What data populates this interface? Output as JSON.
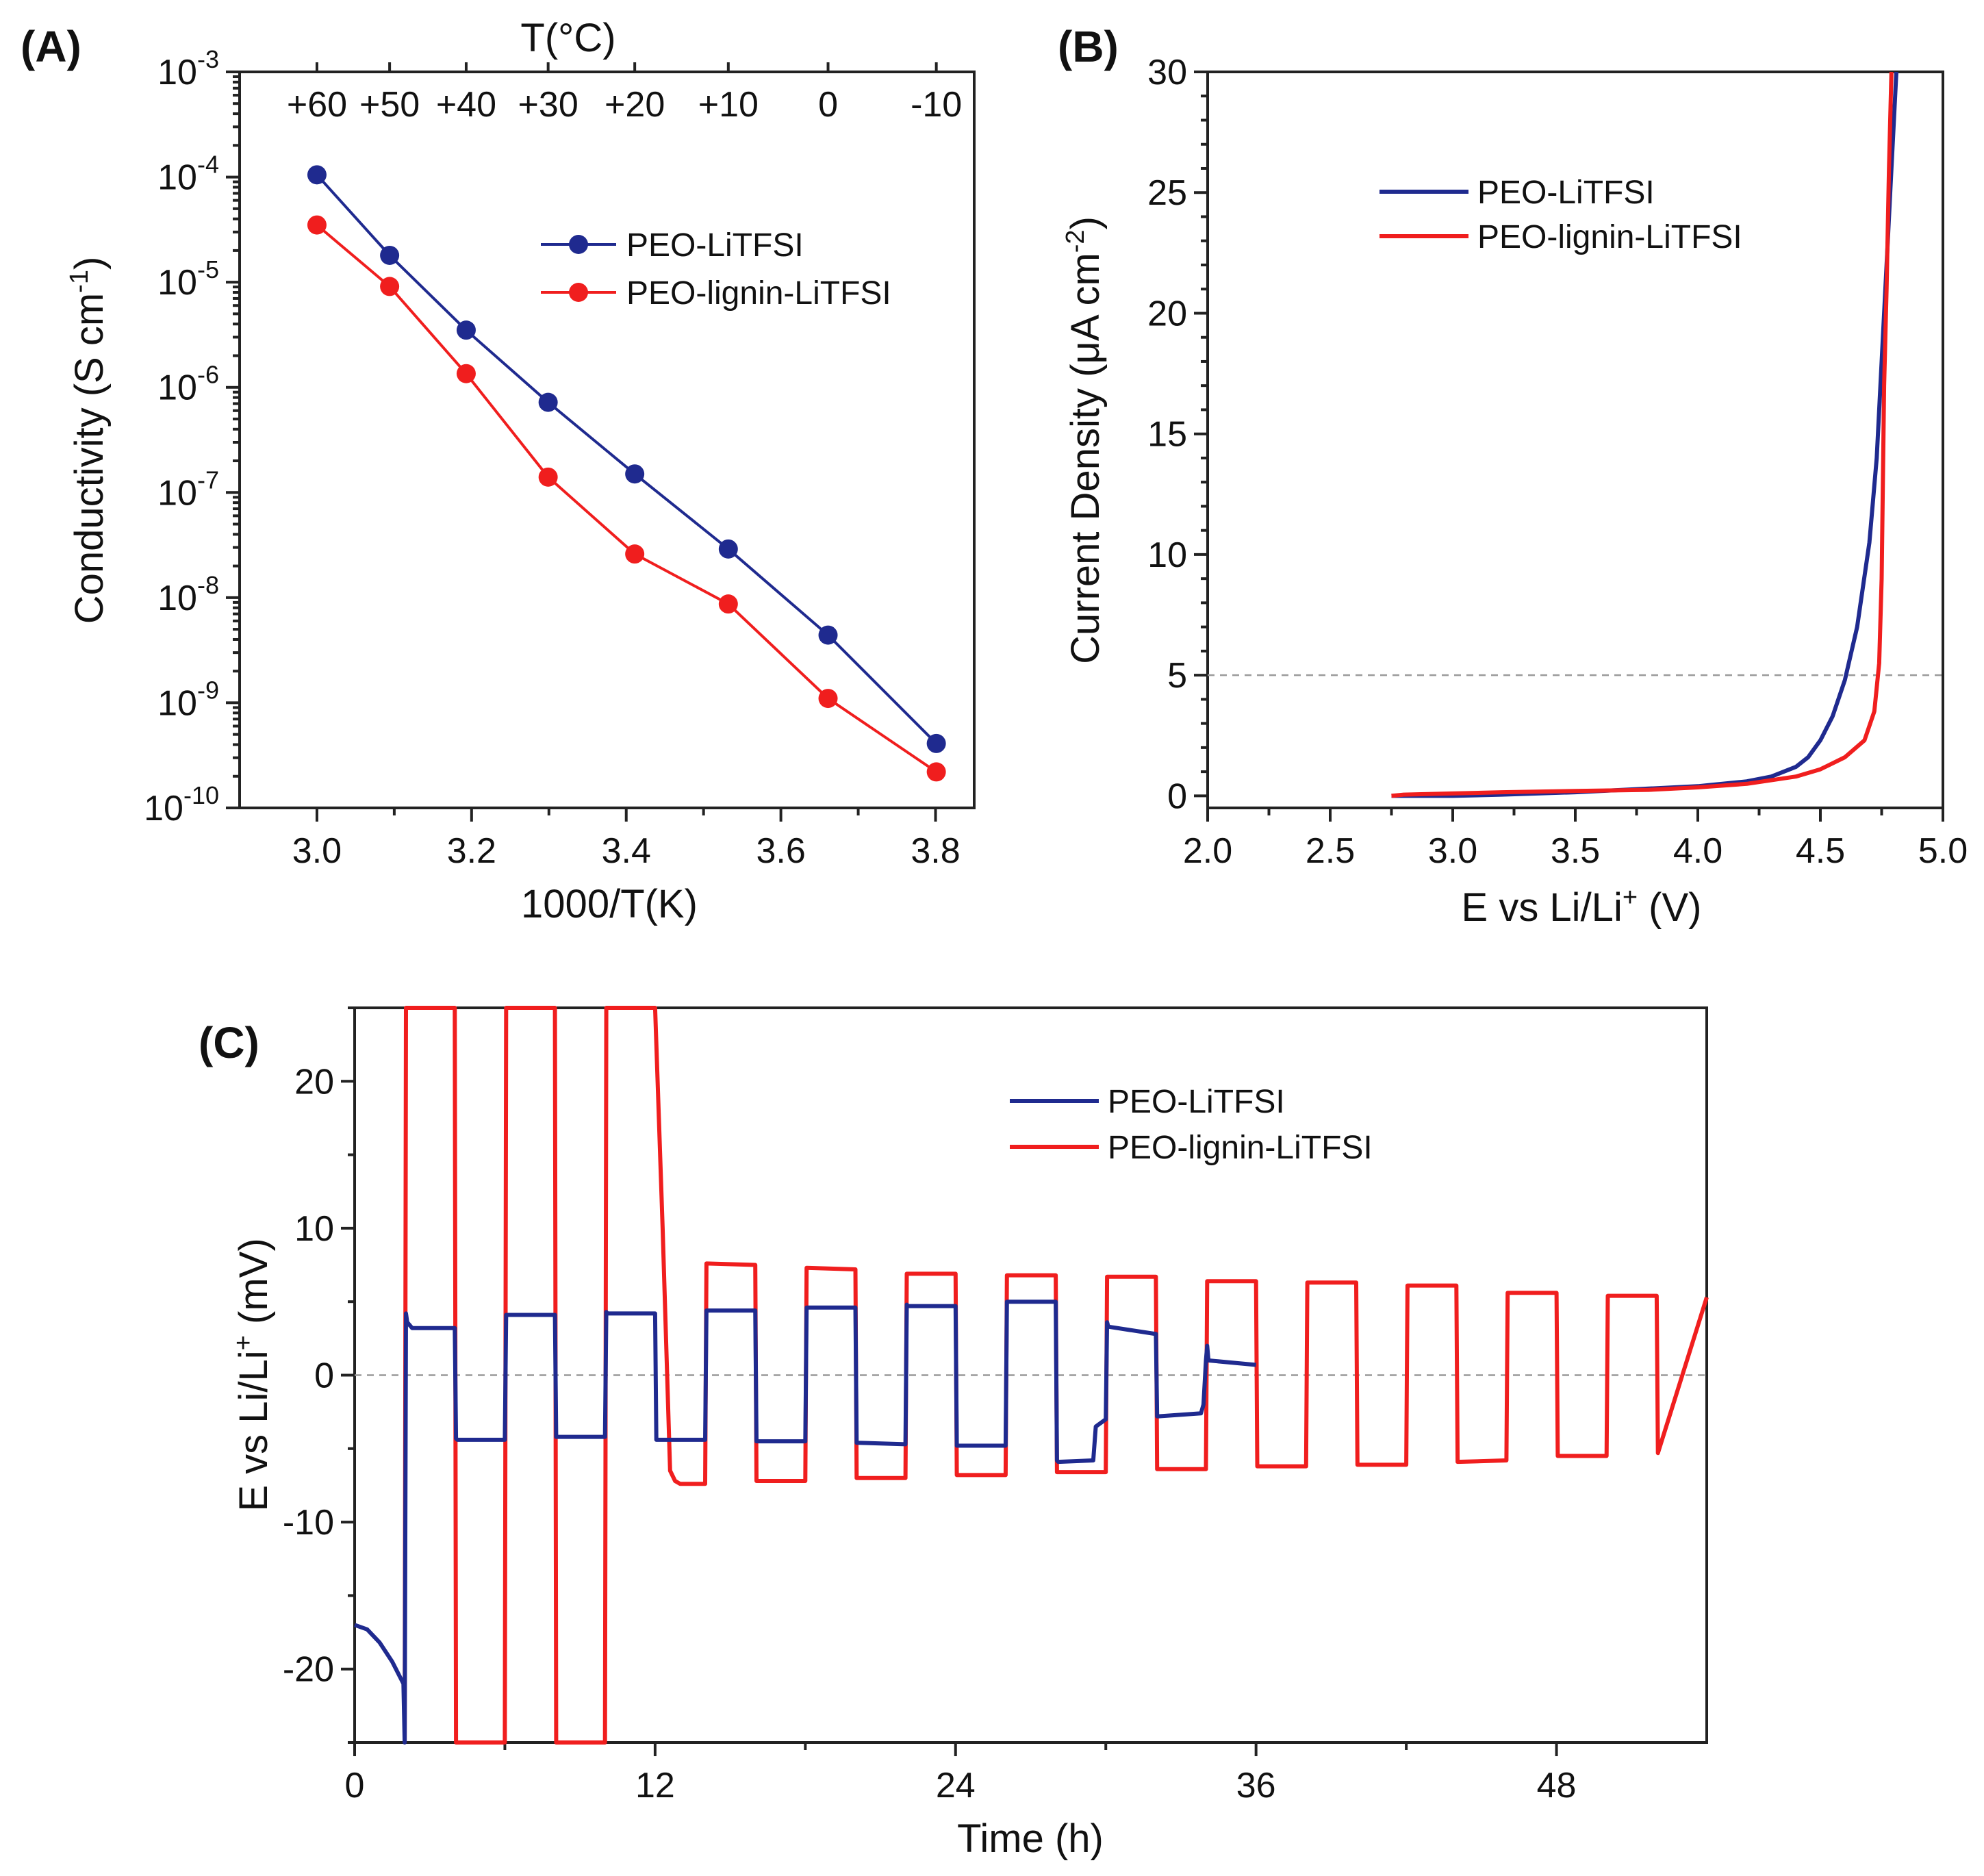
{
  "colors": {
    "blue": "#1f2a8f",
    "red": "#f01e1e"
  },
  "chart_data": [
    {
      "id": "A",
      "panel_label": "(A)",
      "type": "line",
      "title": "",
      "xlabel": "1000/T(K)",
      "ylabel_main": "Conductivity (S cm",
      "ylabel_sup": "-1",
      "ylabel_tail": ")",
      "yscale": "log",
      "xlim": [
        2.9,
        3.85
      ],
      "ylim_exp": [
        -10,
        -3
      ],
      "xticks": [
        3.0,
        3.2,
        3.4,
        3.6,
        3.8
      ],
      "xtick_labels": [
        "3.0",
        "3.2",
        "3.4",
        "3.6",
        "3.8"
      ],
      "ytick_exps": [
        -10,
        -9,
        -8,
        -7,
        -6,
        -5,
        -4,
        -3
      ],
      "ytick_exp_labels": [
        "-10",
        "-9",
        "-8",
        "-7",
        "-6",
        "-5",
        "-4",
        "-3"
      ],
      "ytick_base": "10",
      "top_axis": {
        "title": "T(°C)",
        "ticks_x": [
          3.0,
          3.094,
          3.193,
          3.299,
          3.411,
          3.532,
          3.661,
          3.801
        ],
        "labels": [
          "+60",
          "+50",
          "+40",
          "+30",
          "+20",
          "+10",
          "0",
          "-10"
        ]
      },
      "legend_position": "upper-right",
      "series": [
        {
          "name": "PEO-LiTFSI",
          "color_key": "blue",
          "x": [
            3.0,
            3.094,
            3.193,
            3.299,
            3.411,
            3.532,
            3.661,
            3.801
          ],
          "y": [
            0.000105,
            1.8e-05,
            3.5e-06,
            7.2e-07,
            1.5e-07,
            2.9e-08,
            4.4e-09,
            4.1e-10
          ]
        },
        {
          "name": "PEO-lignin-LiTFSI",
          "color_key": "red",
          "x": [
            3.0,
            3.094,
            3.193,
            3.299,
            3.411,
            3.532,
            3.661,
            3.801
          ],
          "y": [
            3.5e-05,
            9.1e-06,
            1.35e-06,
            1.4e-07,
            2.6e-08,
            8.7e-09,
            1.1e-09,
            2.2e-10
          ]
        }
      ]
    },
    {
      "id": "B",
      "panel_label": "(B)",
      "type": "line",
      "title": "",
      "xlabel_main": "E vs Li/Li",
      "xlabel_sup": "+",
      "xlabel_tail": " (V)",
      "ylabel_main": "Current Density (μA cm",
      "ylabel_sup": "-2",
      "ylabel_tail": ")",
      "xlim": [
        2.0,
        5.0
      ],
      "ylim": [
        -0.5,
        30
      ],
      "xticks": [
        2.0,
        2.5,
        3.0,
        3.5,
        4.0,
        4.5,
        5.0
      ],
      "xtick_labels": [
        "2.0",
        "2.5",
        "3.0",
        "3.5",
        "4.0",
        "4.5",
        "5.0"
      ],
      "yticks": [
        0,
        5,
        10,
        15,
        20,
        25,
        30
      ],
      "ytick_labels": [
        "0",
        "5",
        "10",
        "15",
        "20",
        "25",
        "30"
      ],
      "reference_line_y": 5,
      "legend_position": "upper-center",
      "series": [
        {
          "name": "PEO-LiTFSI",
          "color_key": "blue",
          "x": [
            2.75,
            2.8,
            3.0,
            3.2,
            3.5,
            3.8,
            4.0,
            4.2,
            4.3,
            4.4,
            4.45,
            4.5,
            4.55,
            4.6,
            4.65,
            4.7,
            4.73,
            4.75,
            4.77,
            4.79,
            4.81
          ],
          "y": [
            0.0,
            0.0,
            0.0,
            0.05,
            0.15,
            0.3,
            0.4,
            0.6,
            0.8,
            1.2,
            1.6,
            2.3,
            3.3,
            4.8,
            7.0,
            10.5,
            14.0,
            18.0,
            22.0,
            26.0,
            30.0
          ]
        },
        {
          "name": "PEO-lignin-LiTFSI",
          "color_key": "red",
          "x": [
            2.75,
            2.8,
            3.0,
            3.2,
            3.5,
            3.8,
            4.0,
            4.2,
            4.4,
            4.5,
            4.6,
            4.68,
            4.72,
            4.74,
            4.75,
            4.755,
            4.76,
            4.77,
            4.78,
            4.79
          ],
          "y": [
            0.0,
            0.05,
            0.1,
            0.15,
            0.2,
            0.25,
            0.35,
            0.5,
            0.8,
            1.1,
            1.6,
            2.3,
            3.5,
            5.5,
            9.0,
            13.0,
            17.0,
            21.0,
            26.0,
            30.0
          ]
        }
      ]
    },
    {
      "id": "C",
      "panel_label": "(C)",
      "type": "line",
      "title": "",
      "xlabel": "Time (h)",
      "ylabel_main": "E vs Li/Li",
      "ylabel_sup": "+",
      "ylabel_tail": " (mV)",
      "xlim": [
        0,
        54
      ],
      "ylim": [
        -25,
        25
      ],
      "xticks": [
        0,
        12,
        24,
        36,
        48
      ],
      "xtick_labels": [
        "0",
        "12",
        "24",
        "36",
        "48"
      ],
      "yticks": [
        -20,
        -10,
        0,
        10,
        20
      ],
      "ytick_labels": [
        "-20",
        "-10",
        "0",
        "10",
        "20"
      ],
      "reference_line_y": 0,
      "legend_position": "upper-center",
      "series": [
        {
          "name": "PEO-LiTFSI",
          "color_key": "blue",
          "x": [
            0.0,
            0.5,
            1.0,
            1.5,
            1.95,
            2.0,
            2.05,
            2.1,
            2.3,
            4.0,
            4.05,
            4.1,
            6.0,
            6.05,
            6.1,
            8.0,
            8.05,
            8.1,
            10.0,
            10.05,
            10.1,
            12.0,
            12.05,
            12.1,
            14.0,
            14.05,
            14.1,
            16.0,
            16.05,
            16.1,
            18.0,
            18.05,
            18.1,
            20.0,
            20.05,
            20.1,
            22.0,
            22.05,
            22.1,
            24.0,
            24.05,
            24.1,
            26.0,
            26.05,
            26.1,
            28.0,
            28.05,
            28.1,
            29.5,
            29.6,
            30.0,
            30.05,
            30.1,
            32.0,
            32.05,
            32.1,
            33.8,
            33.9,
            34.0,
            34.05,
            34.1,
            36.0
          ],
          "y": [
            -17.0,
            -17.3,
            -18.2,
            -19.5,
            -21.0,
            -25.0,
            4.2,
            3.6,
            3.2,
            3.2,
            -4.3,
            -4.4,
            -4.4,
            4.1,
            4.1,
            4.1,
            -4.2,
            -4.2,
            -4.2,
            4.3,
            4.2,
            4.2,
            -4.4,
            -4.4,
            -4.4,
            4.4,
            4.4,
            4.4,
            -4.5,
            -4.5,
            -4.5,
            4.6,
            4.6,
            4.6,
            -4.6,
            -4.6,
            -4.7,
            4.8,
            4.7,
            4.7,
            -4.8,
            -4.8,
            -4.8,
            5.0,
            5.0,
            5.0,
            -5.8,
            -5.9,
            -5.8,
            -3.5,
            -3.0,
            3.6,
            3.3,
            2.8,
            -2.8,
            -2.8,
            -2.6,
            -2.0,
            1.0,
            2.0,
            1.0,
            0.7
          ]
        },
        {
          "name": "PEO-lignin-LiTFSI",
          "color_key": "red",
          "x": [
            2.0,
            2.05,
            4.0,
            4.05,
            6.0,
            6.05,
            8.0,
            8.05,
            10.0,
            10.05,
            12.0,
            12.3,
            12.6,
            12.8,
            13.0,
            14.0,
            14.05,
            16.0,
            16.05,
            18.0,
            18.05,
            20.0,
            20.05,
            22.0,
            22.05,
            24.0,
            24.05,
            26.0,
            26.05,
            28.0,
            28.05,
            30.0,
            30.05,
            32.0,
            32.05,
            34.0,
            34.05,
            36.0,
            36.05,
            38.0,
            38.05,
            40.0,
            40.05,
            42.0,
            42.05,
            44.0,
            44.05,
            46.0,
            46.05,
            48.0,
            48.05,
            50.0,
            50.05,
            52.0,
            52.05,
            54.0
          ],
          "y": [
            -25.0,
            25.0,
            25.0,
            -25.0,
            -25.0,
            25.0,
            25.0,
            -25.0,
            -25.0,
            25.0,
            25.0,
            10.0,
            -6.5,
            -7.2,
            -7.4,
            -7.4,
            7.6,
            7.5,
            -7.2,
            -7.2,
            7.3,
            7.2,
            -7.0,
            -7.0,
            6.9,
            6.9,
            -6.8,
            -6.8,
            6.8,
            6.8,
            -6.6,
            -6.6,
            6.7,
            6.7,
            -6.4,
            -6.4,
            6.4,
            6.4,
            -6.2,
            -6.2,
            6.3,
            6.3,
            -6.1,
            -6.1,
            6.1,
            6.1,
            -5.9,
            -5.8,
            5.6,
            5.6,
            -5.5,
            -5.5,
            5.4,
            5.4,
            -5.3,
            5.3
          ]
        }
      ]
    }
  ]
}
